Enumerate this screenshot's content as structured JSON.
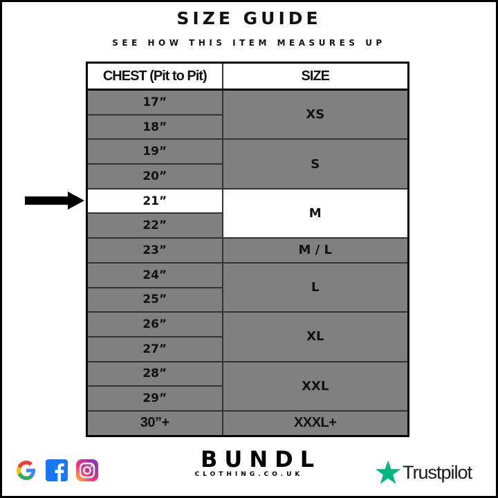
{
  "title": "SIZE GUIDE",
  "subtitle": "SEE HOW THIS ITEM MEASURES UP",
  "table": {
    "headers": [
      "CHEST (Pit to Pit)",
      "SIZE"
    ],
    "chest_rows": [
      {
        "value": "17”",
        "highlighted": false
      },
      {
        "value": "18”",
        "highlighted": false
      },
      {
        "value": "19”",
        "highlighted": false
      },
      {
        "value": "20”",
        "highlighted": false
      },
      {
        "value": "21”",
        "highlighted": true
      },
      {
        "value": "22”",
        "highlighted": false
      },
      {
        "value": "23”",
        "highlighted": false
      },
      {
        "value": "24”",
        "highlighted": false
      },
      {
        "value": "25”",
        "highlighted": false
      },
      {
        "value": "26”",
        "highlighted": false
      },
      {
        "value": "27”",
        "highlighted": false
      },
      {
        "value": "28”",
        "highlighted": false
      },
      {
        "value": "29”",
        "highlighted": false
      },
      {
        "value": "30”+",
        "highlighted": false
      }
    ],
    "sizes": [
      {
        "label": "XS",
        "rows": 2,
        "highlighted": false
      },
      {
        "label": "S",
        "rows": 2,
        "highlighted": false
      },
      {
        "label": "M",
        "rows": 2,
        "highlighted": true
      },
      {
        "label": "M / L",
        "rows": 1,
        "highlighted": false
      },
      {
        "label": "L",
        "rows": 2,
        "highlighted": false
      },
      {
        "label": "XL",
        "rows": 2,
        "highlighted": false
      },
      {
        "label": "XXL",
        "rows": 2,
        "highlighted": false
      },
      {
        "label": "XXXL+",
        "rows": 1,
        "highlighted": false
      }
    ]
  },
  "pointer": {
    "icon": "arrow-right-icon",
    "points_to": "21”"
  },
  "footer": {
    "social_icons": [
      "google-icon",
      "facebook-icon",
      "instagram-icon"
    ],
    "brand_name": "BUNDL",
    "brand_site": "CLOTHING.CO.UK",
    "trustpilot": "Trustpilot"
  },
  "colors": {
    "cell_gray": "#808080",
    "highlight": "#ffffff",
    "trustpilot_green": "#00b67a",
    "facebook_blue": "#1877f2"
  }
}
